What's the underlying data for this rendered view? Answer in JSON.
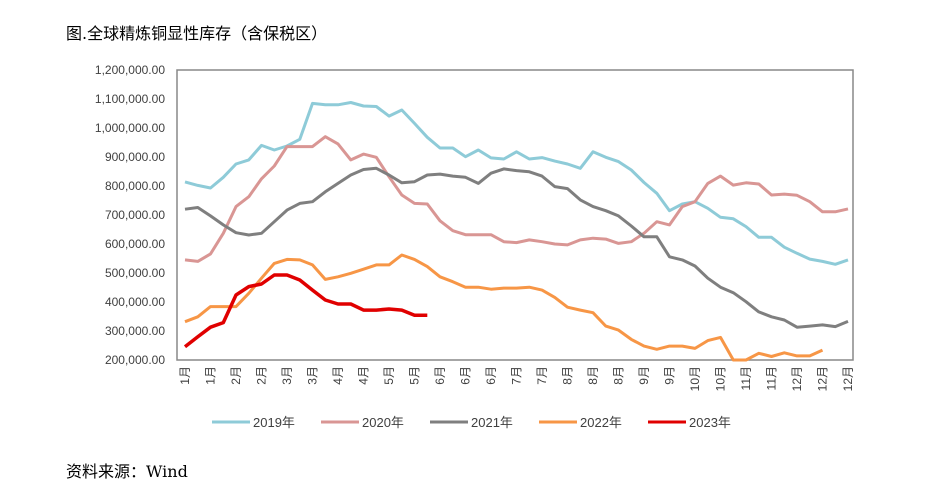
{
  "title": "图.全球精炼铜显性库存（含保税区）",
  "source": "资料来源：Wind",
  "chart_data": {
    "type": "line",
    "title": "图.全球精炼铜显性库存（含保税区）",
    "xlabel": "",
    "ylabel": "",
    "ylim": [
      200000,
      1200000
    ],
    "yticks": [
      "1,200,000.00",
      "1,100,000.00",
      "1,000,000.00",
      "900,000.00",
      "800,000.00",
      "700,000.00",
      "600,000.00",
      "500,000.00",
      "400,000.00",
      "300,000.00",
      "200,000.00"
    ],
    "xticks": [
      "1月",
      "1月",
      "2月",
      "2月",
      "3月",
      "3月",
      "4月",
      "4月",
      "5月",
      "5月",
      "6月",
      "6月",
      "6月",
      "7月",
      "7月",
      "8月",
      "8月",
      "8月",
      "9月",
      "9月",
      "10月",
      "10月",
      "11月",
      "11月",
      "12月",
      "12月",
      "12月"
    ],
    "grid": false,
    "legend": "bottom",
    "series": [
      {
        "name": "2019年",
        "color": "#8ecbd8",
        "values": [
          814000,
          802000,
          793000,
          830000,
          876000,
          890000,
          940000,
          924000,
          938000,
          961000,
          1085000,
          1080000,
          1080000,
          1088000,
          1076000,
          1074000,
          1041000,
          1062000,
          1016000,
          968000,
          931000,
          931000,
          901000,
          924000,
          897000,
          893000,
          918000,
          893000,
          898000,
          886000,
          876000,
          861000,
          918000,
          899000,
          884000,
          855000,
          812000,
          775000,
          715000,
          738000,
          746000,
          723000,
          692000,
          687000,
          660000,
          623000,
          623000,
          589000,
          568000,
          548000,
          540000,
          530000,
          545000
        ]
      },
      {
        "name": "2020年",
        "color": "#d99694",
        "values": [
          545000,
          540000,
          566000,
          637000,
          729000,
          763000,
          825000,
          869000,
          936000,
          936000,
          936000,
          970000,
          945000,
          890000,
          910000,
          899000,
          832000,
          769000,
          740000,
          738000,
          680000,
          646000,
          632000,
          632000,
          632000,
          608000,
          605000,
          614000,
          608000,
          600000,
          597000,
          614000,
          620000,
          617000,
          602000,
          608000,
          637000,
          677000,
          666000,
          729000,
          746000,
          809000,
          834000,
          803000,
          811000,
          807000,
          769000,
          772000,
          768000,
          746000,
          711000,
          711000,
          721000
        ]
      },
      {
        "name": "2021年",
        "color": "#7f7f7f",
        "values": [
          720000,
          726000,
          697000,
          666000,
          639000,
          631000,
          637000,
          677000,
          717000,
          740000,
          746000,
          780000,
          809000,
          838000,
          857000,
          861000,
          838000,
          811000,
          815000,
          838000,
          841000,
          834000,
          830000,
          809000,
          844000,
          859000,
          853000,
          849000,
          834000,
          798000,
          791000,
          752000,
          729000,
          715000,
          697000,
          662000,
          625000,
          625000,
          556000,
          545000,
          524000,
          482000,
          451000,
          432000,
          401000,
          366000,
          349000,
          338000,
          313000,
          317000,
          321000,
          315000,
          333000
        ]
      },
      {
        "name": "2022年",
        "color": "#f79646",
        "values": [
          332000,
          349000,
          384000,
          384000,
          384000,
          430000,
          482000,
          533000,
          547000,
          545000,
          528000,
          478000,
          487000,
          499000,
          513000,
          528000,
          528000,
          562000,
          547000,
          522000,
          487000,
          470000,
          451000,
          451000,
          444000,
          448000,
          448000,
          451000,
          441000,
          416000,
          382000,
          372000,
          363000,
          317000,
          303000,
          271000,
          248000,
          237000,
          248000,
          248000,
          240000,
          267000,
          278000,
          200000,
          200000,
          223000,
          212000,
          225000,
          214000,
          214000,
          234000
        ]
      },
      {
        "name": "2023年",
        "color": "#e00000",
        "values": [
          246000,
          280000,
          313000,
          329000,
          424000,
          453000,
          462000,
          493000,
          493000,
          476000,
          441000,
          407000,
          393000,
          393000,
          372000,
          372000,
          376000,
          372000,
          354000,
          354000
        ]
      }
    ]
  }
}
